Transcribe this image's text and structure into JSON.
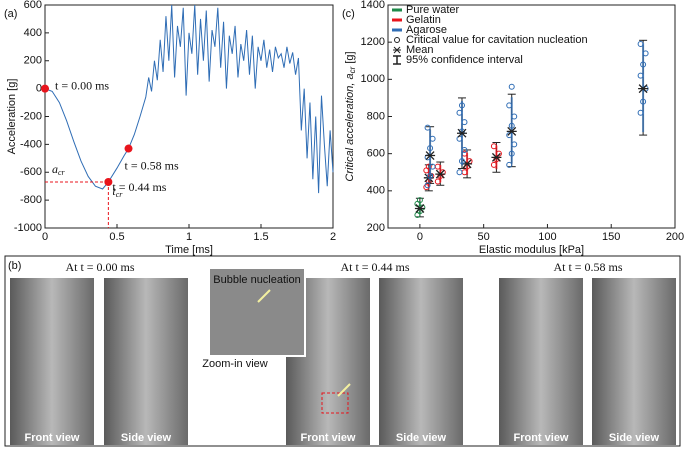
{
  "chart_data": [
    {
      "type": "line",
      "panel_label": "(a)",
      "x_label": "Time [ms]",
      "y_label": "Acceleration [g]",
      "xlim": [
        0,
        2
      ],
      "ylim": [
        -1000,
        600
      ],
      "xticks": [
        0,
        0.5,
        1,
        1.5,
        2
      ],
      "yticks": [
        -1000,
        -800,
        -600,
        -400,
        -200,
        0,
        200,
        400,
        600
      ],
      "x": [
        0,
        0.05,
        0.1,
        0.15,
        0.2,
        0.25,
        0.3,
        0.35,
        0.4,
        0.44,
        0.5,
        0.55,
        0.58,
        0.62,
        0.66,
        0.7,
        0.72,
        0.74,
        0.76,
        0.78,
        0.8,
        0.82,
        0.84,
        0.86,
        0.88,
        0.9,
        0.92,
        0.94,
        0.96,
        0.98,
        1.0,
        1.02,
        1.04,
        1.06,
        1.08,
        1.1,
        1.12,
        1.14,
        1.16,
        1.18,
        1.2,
        1.22,
        1.24,
        1.26,
        1.28,
        1.3,
        1.32,
        1.34,
        1.36,
        1.38,
        1.4,
        1.42,
        1.44,
        1.46,
        1.48,
        1.5,
        1.52,
        1.54,
        1.56,
        1.58,
        1.6,
        1.62,
        1.64,
        1.66,
        1.68,
        1.7,
        1.72,
        1.74,
        1.76,
        1.78,
        1.8,
        1.82,
        1.84,
        1.86,
        1.88,
        1.9,
        1.92,
        1.94,
        1.96,
        1.98,
        2.0
      ],
      "series": [
        {
          "color": "#2f6db5",
          "values": [
            0,
            -20,
            -100,
            -230,
            -380,
            -520,
            -630,
            -700,
            -720,
            -670,
            -570,
            -480,
            -430,
            -330,
            -200,
            -60,
            80,
            -20,
            200,
            60,
            350,
            120,
            520,
            200,
            600,
            80,
            450,
            300,
            580,
            -50,
            400,
            250,
            600,
            100,
            500,
            200,
            560,
            50,
            420,
            300,
            580,
            150,
            480,
            0,
            380,
            250,
            450,
            80,
            320,
            200,
            420,
            100,
            380,
            0,
            300,
            200,
            350,
            150,
            280,
            120,
            300,
            220,
            250,
            150,
            300,
            180,
            260,
            100,
            220,
            -300,
            0,
            -500,
            -100,
            -650,
            -200,
            -750,
            -50,
            -400,
            -700,
            -300,
            -600
          ]
        }
      ],
      "markers": {
        "color": "#e8141c",
        "x": [
          0,
          0.44,
          0.58
        ],
        "values": [
          0,
          -670,
          -430
        ],
        "labels": [
          "t = 0.00 ms",
          "t = 0.44 ms",
          "t = 0.58 ms"
        ]
      },
      "a_label": {
        "main": "a",
        "sub": "cr"
      },
      "t_label": {
        "main": "t",
        "sub": "cr"
      }
    },
    {
      "type": "scatter",
      "panel_label": "(c)",
      "x_label": "Elastic modulus [kPa]",
      "y_label": {
        "main": "Critical acceleration, a",
        "sub": "cr",
        "unit": " [g]"
      },
      "xlim": [
        -25,
        200
      ],
      "ylim": [
        200,
        1400
      ],
      "xticks": [
        0,
        50,
        100,
        150,
        200
      ],
      "yticks": [
        200,
        400,
        600,
        800,
        1000,
        1200,
        1400
      ],
      "series": [
        {
          "name": "Pure water",
          "color": "#1e8a4a",
          "groups": [
            {
              "x": 0,
              "mean": 305,
              "ci": [
                260,
                360
              ],
              "values": [
                270,
                290,
                310,
                330,
                350
              ]
            }
          ]
        },
        {
          "name": "Gelatin",
          "color": "#e8141c",
          "groups": [
            {
              "x": 7,
              "mean": 470,
              "ci": [
                400,
                540
              ],
              "values": [
                420,
                450,
                480,
                510,
                530
              ]
            },
            {
              "x": 16,
              "mean": 490,
              "ci": [
                430,
                555
              ],
              "values": [
                450,
                480,
                500,
                530
              ]
            },
            {
              "x": 37,
              "mean": 545,
              "ci": [
                470,
                620
              ],
              "values": [
                500,
                530,
                560,
                600
              ]
            },
            {
              "x": 60,
              "mean": 580,
              "ci": [
                500,
                660
              ],
              "values": [
                540,
                570,
                600,
                640
              ]
            }
          ]
        },
        {
          "name": "Agarose",
          "color": "#2f6db5",
          "groups": [
            {
              "x": 8,
              "mean": 590,
              "ci": [
                440,
                745
              ],
              "values": [
                430,
                480,
                530,
                580,
                630,
                680,
                740
              ]
            },
            {
              "x": 33,
              "mean": 710,
              "ci": [
                520,
                900
              ],
              "values": [
                500,
                560,
                620,
                680,
                720,
                770,
                820,
                860
              ]
            },
            {
              "x": 72,
              "mean": 720,
              "ci": [
                530,
                920
              ],
              "values": [
                540,
                600,
                650,
                700,
                750,
                800,
                860,
                960
              ]
            },
            {
              "x": 175,
              "mean": 950,
              "ci": [
                700,
                1210
              ],
              "values": [
                820,
                880,
                950,
                1020,
                1080,
                1140,
                1190
              ]
            }
          ]
        }
      ],
      "legend_extra": [
        "Critical value for cavitation nucleation",
        "Mean",
        "95% confidence interval"
      ]
    }
  ],
  "panel_b": {
    "label": "(b)",
    "headings": [
      "At t = 0.00 ms",
      "At t = 0.44 ms",
      "At t = 0.58 ms"
    ],
    "bubble_label": "Bubble nucleation",
    "zoom_label": "Zoom-in view",
    "views": [
      "Front view",
      "Side view",
      "Front view",
      "Side view",
      "Front view",
      "Side view"
    ]
  }
}
